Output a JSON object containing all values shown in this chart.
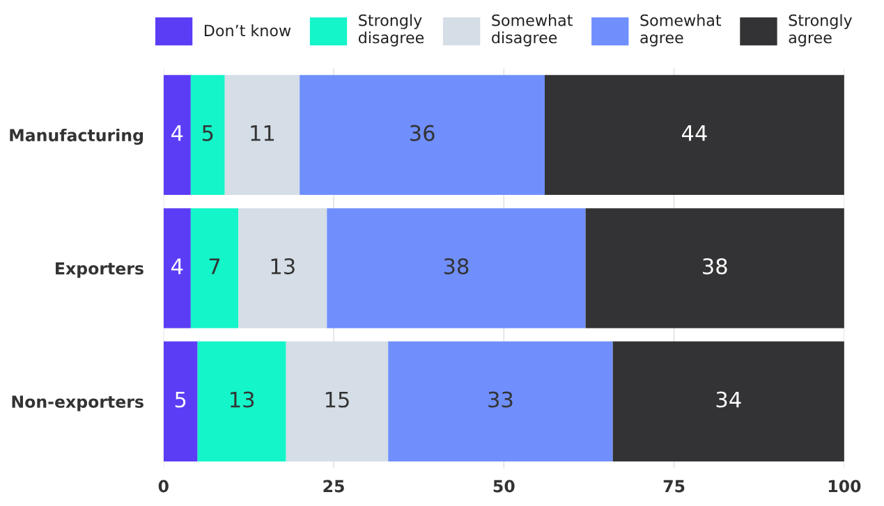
{
  "chart_data": {
    "type": "bar",
    "orientation": "horizontal",
    "stacked": true,
    "categories": [
      "Manufacturing",
      "Exporters",
      "Non-exporters"
    ],
    "series": [
      {
        "name": "Don’t know",
        "color": "#5b3df6",
        "values": [
          4,
          4,
          5
        ]
      },
      {
        "name": "Strongly\ndisagree",
        "color": "#14f5c9",
        "values": [
          5,
          7,
          13
        ]
      },
      {
        "name": "Somewhat\ndisagree",
        "color": "#d5dde6",
        "values": [
          11,
          13,
          15
        ]
      },
      {
        "name": "Somewhat\nagree",
        "color": "#708ffd",
        "values": [
          36,
          38,
          33
        ]
      },
      {
        "name": "Strongly\nagree",
        "color": "#333335",
        "values": [
          44,
          38,
          34
        ]
      }
    ],
    "xlim": [
      0,
      100
    ],
    "xticks": [
      0,
      25,
      50,
      75,
      100
    ],
    "grid": "x",
    "legend": "top",
    "data_labels": true
  }
}
